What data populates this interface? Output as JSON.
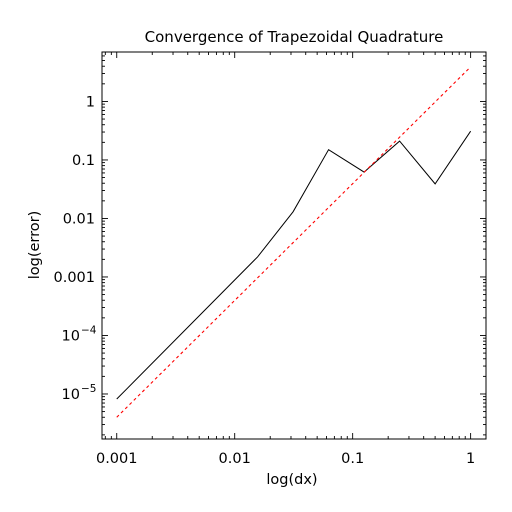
{
  "chart_data": {
    "type": "line",
    "title": "Convergence of Trapezoidal Quadrature",
    "xlabel": "log(dx)",
    "ylabel": "log(error)",
    "x_scale": "log",
    "y_scale": "log",
    "xlim": [
      0.00075,
      1.35
    ],
    "ylim": [
      1.7e-06,
      7
    ],
    "x_ticks": [
      {
        "value": 0.001,
        "label": "0.001"
      },
      {
        "value": 0.01,
        "label": "0.01"
      },
      {
        "value": 0.1,
        "label": "0.1"
      },
      {
        "value": 1,
        "label": "1"
      }
    ],
    "y_ticks": [
      {
        "value": 1e-05,
        "base": "10",
        "exp": "−5"
      },
      {
        "value": 0.0001,
        "base": "10",
        "exp": "−4"
      },
      {
        "value": 0.001,
        "label": "0.001"
      },
      {
        "value": 0.01,
        "label": "0.01"
      },
      {
        "value": 0.1,
        "label": "0.1"
      },
      {
        "value": 1,
        "label": "1"
      }
    ],
    "grid": false,
    "series": [
      {
        "style": "solid",
        "color": "#000000",
        "x": [
          0.001,
          0.015625,
          0.03125,
          0.0625,
          0.125,
          0.25,
          0.5,
          1
        ],
        "y": [
          8.2e-06,
          0.0022,
          0.013,
          0.15,
          0.062,
          0.21,
          0.039,
          0.31
        ]
      },
      {
        "style": "dashed",
        "color": "#ff0000",
        "x": [
          0.001,
          1
        ],
        "y": [
          4e-06,
          3.9
        ]
      }
    ]
  }
}
